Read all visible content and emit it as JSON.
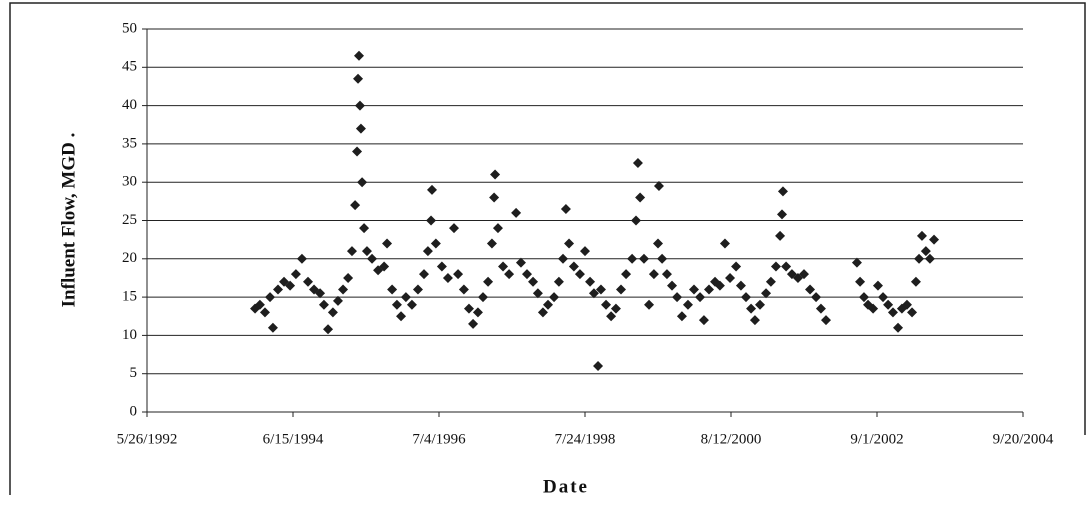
{
  "chart_data": {
    "type": "scatter",
    "x_label": "Date",
    "y_label": "Influent Flow, MGD .",
    "color": "#1e1e1e",
    "grid": true,
    "xlim": [
      33750,
      38250
    ],
    "xticks": [
      {
        "value": 33750,
        "label": "5/26/1992"
      },
      {
        "value": 34500,
        "label": "6/15/1994"
      },
      {
        "value": 35250,
        "label": "7/4/1996"
      },
      {
        "value": 36000,
        "label": "7/24/1998"
      },
      {
        "value": 36750,
        "label": "8/12/2000"
      },
      {
        "value": 37500,
        "label": "9/1/2002"
      },
      {
        "value": 38250,
        "label": "9/20/2004"
      }
    ],
    "ylim": [
      0,
      50
    ],
    "yticks": [
      0,
      5,
      10,
      15,
      20,
      25,
      30,
      35,
      40,
      45,
      50
    ],
    "x": [
      34305,
      34330,
      34356,
      34382,
      34397,
      34423,
      34454,
      34485,
      34515,
      34546,
      34577,
      34608,
      34639,
      34659,
      34680,
      34705,
      34731,
      34757,
      34783,
      34803,
      34819,
      34829,
      34834,
      34839,
      34844,
      34849,
      34855,
      34865,
      34880,
      34906,
      34937,
      34968,
      34983,
      35009,
      35034,
      35055,
      35080,
      35111,
      35142,
      35173,
      35193,
      35209,
      35214,
      35234,
      35265,
      35296,
      35327,
      35348,
      35378,
      35404,
      35425,
      35450,
      35476,
      35502,
      35522,
      35533,
      35538,
      35553,
      35579,
      35610,
      35646,
      35671,
      35702,
      35733,
      35758,
      35784,
      35810,
      35841,
      35866,
      35887,
      35902,
      35918,
      35943,
      35974,
      36000,
      36026,
      36046,
      36067,
      36082,
      36108,
      36134,
      36159,
      36185,
      36211,
      36242,
      36262,
      36272,
      36283,
      36303,
      36329,
      36354,
      36375,
      36380,
      36396,
      36421,
      36447,
      36473,
      36498,
      36529,
      36560,
      36591,
      36611,
      36637,
      36668,
      36693,
      36719,
      36745,
      36776,
      36801,
      36827,
      36853,
      36873,
      36899,
      36930,
      36955,
      36981,
      37002,
      37012,
      37017,
      37033,
      37063,
      37094,
      37125,
      37156,
      37187,
      37212,
      37238,
      37397,
      37413,
      37433,
      37454,
      37480,
      37505,
      37531,
      37557,
      37582,
      37608,
      37628,
      37654,
      37680,
      37700,
      37716,
      37731,
      37751,
      37772,
      37793
    ],
    "values": [
      13.5,
      14,
      13,
      15,
      11,
      16,
      17,
      16.5,
      18,
      20,
      17,
      16,
      15.5,
      14,
      10.8,
      13,
      14.5,
      16,
      17.5,
      21,
      27,
      34,
      43.5,
      46.5,
      40,
      37,
      30,
      24,
      21,
      20,
      18.5,
      19,
      22,
      16,
      14,
      12.5,
      15,
      14,
      16,
      18,
      21,
      25,
      29,
      22,
      19,
      17.5,
      24,
      18,
      16,
      13.5,
      11.5,
      13,
      15,
      17,
      22,
      28,
      31,
      24,
      19,
      18,
      26,
      19.5,
      18,
      17,
      15.5,
      13,
      14,
      15,
      17,
      20,
      26.5,
      22,
      19,
      18,
      21,
      17,
      15.5,
      6,
      16,
      14,
      12.5,
      13.5,
      16,
      18,
      20,
      25,
      32.5,
      28,
      20,
      14,
      18,
      22,
      29.5,
      20,
      18,
      16.5,
      15,
      12.5,
      14,
      16,
      15,
      12,
      16,
      17,
      16.5,
      22,
      17.5,
      19,
      16.5,
      15,
      13.5,
      12,
      14,
      15.5,
      17,
      19,
      23,
      25.8,
      28.8,
      19,
      18,
      17.5,
      18,
      16,
      15,
      13.5,
      12,
      19.5,
      17,
      15,
      14,
      13.5,
      16.5,
      15,
      14,
      13,
      11,
      13.5,
      14,
      13,
      17,
      20,
      23,
      21,
      20,
      22.5
    ]
  }
}
